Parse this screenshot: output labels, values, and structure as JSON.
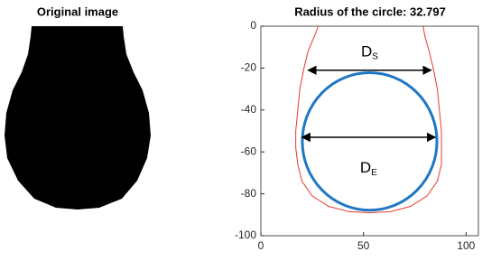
{
  "image_title": "Original image",
  "chart_data": {
    "type": "contour",
    "title": "Radius of the circle: 32.797",
    "xlim": [
      0,
      106
    ],
    "ylim": [
      -100,
      0
    ],
    "xticks": [
      0,
      50,
      100
    ],
    "yticks": [
      0,
      -20,
      -40,
      -60,
      -80,
      -100
    ],
    "contour": {
      "color": "#e8392f",
      "x": [
        28,
        26,
        23,
        21,
        19,
        18,
        17,
        17,
        18,
        20,
        25,
        33,
        43,
        53,
        63,
        73,
        81,
        86,
        88,
        88,
        88,
        87,
        86,
        84,
        82,
        80,
        79
      ],
      "y": [
        0,
        -5,
        -12,
        -20,
        -30,
        -40,
        -50,
        -58,
        -66,
        -74,
        -81,
        -86,
        -88.5,
        -89,
        -88.5,
        -86,
        -81,
        -74,
        -66,
        -58,
        -50,
        -40,
        -30,
        -20,
        -12,
        -5,
        0
      ]
    },
    "circle": {
      "color": "#1f77c4",
      "cx": 53,
      "cy": -55,
      "r": 32.797
    },
    "arrows": [
      {
        "label": "D",
        "sub": "S",
        "x1": 23,
        "x2": 83,
        "y": -21
      },
      {
        "label": "D",
        "sub": "E",
        "x1": 20,
        "x2": 85,
        "y": -53
      }
    ]
  }
}
